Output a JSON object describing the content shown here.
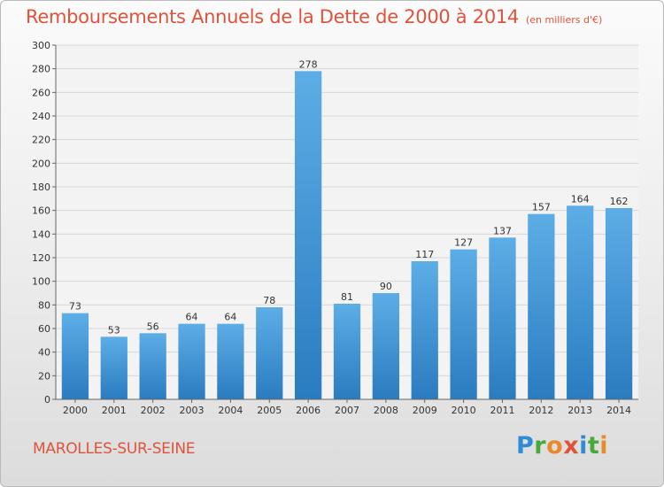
{
  "header": {
    "title": "Remboursements Annuels de la Dette de 2000 à 2014",
    "unit": "(en milliers d'€)"
  },
  "footer": {
    "commune": "MAROLLES-SUR-SEINE",
    "logo_letters": [
      {
        "char": "P",
        "color": "#2f8ad8"
      },
      {
        "char": "r",
        "color": "#48a83a"
      },
      {
        "char": "o",
        "color": "#e8892b"
      },
      {
        "char": "x",
        "color": "#e0533b"
      },
      {
        "char": "i",
        "color": "#2f8ad8"
      },
      {
        "char": "t",
        "color": "#48a83a"
      },
      {
        "char": "i",
        "color": "#e8892b"
      }
    ]
  },
  "colors": {
    "accent": "#e0533b",
    "bar_light": "#5dade6",
    "bar_dark": "#2a7cc0"
  },
  "chart_data": {
    "type": "bar",
    "title": "Remboursements Annuels de la Dette de 2000 à 2014",
    "xlabel": "",
    "ylabel": "",
    "ylim": [
      0,
      300
    ],
    "ytick_step": 20,
    "grid": true,
    "categories": [
      "2000",
      "2001",
      "2002",
      "2003",
      "2004",
      "2005",
      "2006",
      "2007",
      "2008",
      "2009",
      "2010",
      "2011",
      "2012",
      "2013",
      "2014"
    ],
    "values": [
      73,
      53,
      56,
      64,
      64,
      78,
      278,
      81,
      90,
      117,
      127,
      137,
      157,
      164,
      162
    ]
  }
}
